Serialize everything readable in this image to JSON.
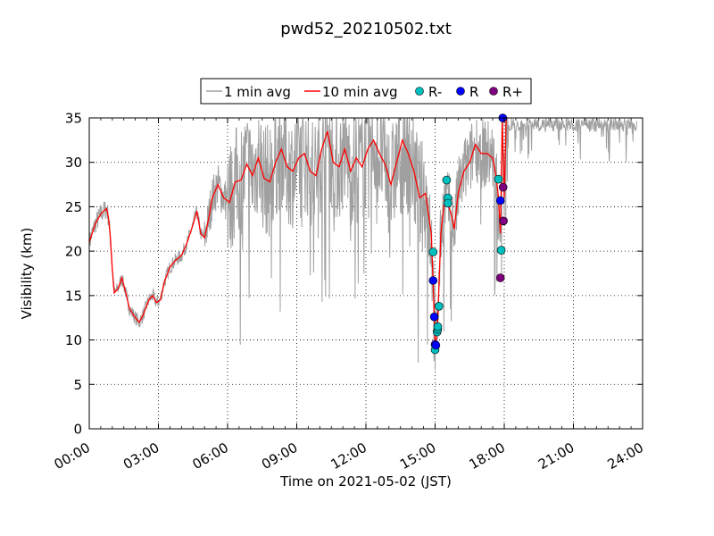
{
  "chart_data": {
    "type": "line",
    "title": "pwd52_20210502.txt",
    "xlabel": "Time on 2021-05-02 (JST)",
    "ylabel": "Visibility (km)",
    "xlim": [
      "00:00",
      "24:00"
    ],
    "ylim": [
      0,
      35
    ],
    "x_tick_labels": [
      "00:00",
      "03:00",
      "06:00",
      "09:00",
      "12:00",
      "15:00",
      "18:00",
      "21:00",
      "24:00"
    ],
    "y_ticks": [
      0,
      5,
      10,
      15,
      20,
      25,
      30,
      35
    ],
    "grid": true,
    "legend_position": "top-center",
    "legend": [
      "1 min avg",
      "10 min avg",
      "R-",
      "R",
      "R+"
    ],
    "colors": {
      "one_min": "#a0a0a0",
      "ten_min": "#ff0000",
      "r_minus": "#00bfbf",
      "r": "#0000ff",
      "r_plus": "#7f007f"
    },
    "series": [
      {
        "name": "10 min avg",
        "points": [
          [
            "00:00",
            21.0
          ],
          [
            "00:15",
            23.0
          ],
          [
            "00:30",
            24.2
          ],
          [
            "00:45",
            24.8
          ],
          [
            "00:50",
            23.8
          ],
          [
            "00:55",
            21.5
          ],
          [
            "01:00",
            18.0
          ],
          [
            "01:05",
            15.3
          ],
          [
            "01:15",
            15.8
          ],
          [
            "01:25",
            17.0
          ],
          [
            "01:35",
            15.3
          ],
          [
            "01:45",
            13.5
          ],
          [
            "02:00",
            12.5
          ],
          [
            "02:10",
            12.0
          ],
          [
            "02:20",
            12.8
          ],
          [
            "02:35",
            14.5
          ],
          [
            "02:45",
            15.0
          ],
          [
            "02:55",
            14.2
          ],
          [
            "03:05",
            14.5
          ],
          [
            "03:15",
            16.5
          ],
          [
            "03:30",
            18.2
          ],
          [
            "03:45",
            19.0
          ],
          [
            "04:00",
            19.5
          ],
          [
            "04:15",
            21.0
          ],
          [
            "04:30",
            23.0
          ],
          [
            "04:40",
            24.5
          ],
          [
            "04:50",
            22.0
          ],
          [
            "05:00",
            21.5
          ],
          [
            "05:10",
            23.5
          ],
          [
            "05:20",
            26.0
          ],
          [
            "05:35",
            27.5
          ],
          [
            "05:50",
            26.0
          ],
          [
            "06:05",
            25.5
          ],
          [
            "06:20",
            27.8
          ],
          [
            "06:35",
            28.0
          ],
          [
            "06:50",
            29.8
          ],
          [
            "07:05",
            28.5
          ],
          [
            "07:20",
            30.5
          ],
          [
            "07:35",
            28.2
          ],
          [
            "07:50",
            27.8
          ],
          [
            "08:05",
            30.0
          ],
          [
            "08:20",
            31.5
          ],
          [
            "08:35",
            29.5
          ],
          [
            "08:50",
            29.0
          ],
          [
            "09:05",
            30.5
          ],
          [
            "09:20",
            31.0
          ],
          [
            "09:35",
            29.0
          ],
          [
            "09:50",
            28.5
          ],
          [
            "10:05",
            31.5
          ],
          [
            "10:20",
            33.5
          ],
          [
            "10:35",
            30.0
          ],
          [
            "10:50",
            29.5
          ],
          [
            "11:05",
            31.5
          ],
          [
            "11:20",
            29.0
          ],
          [
            "11:35",
            30.5
          ],
          [
            "11:50",
            29.5
          ],
          [
            "12:05",
            31.5
          ],
          [
            "12:20",
            32.5
          ],
          [
            "12:35",
            31.0
          ],
          [
            "12:50",
            29.8
          ],
          [
            "13:05",
            27.5
          ],
          [
            "13:20",
            30.0
          ],
          [
            "13:35",
            32.5
          ],
          [
            "13:50",
            31.0
          ],
          [
            "14:05",
            29.0
          ],
          [
            "14:20",
            26.0
          ],
          [
            "14:35",
            26.5
          ],
          [
            "14:50",
            22.0
          ],
          [
            "14:55",
            16.5
          ],
          [
            "15:00",
            9.5
          ],
          [
            "15:05",
            10.5
          ],
          [
            "15:10",
            16.0
          ],
          [
            "15:15",
            22.0
          ],
          [
            "15:25",
            26.0
          ],
          [
            "15:40",
            24.5
          ],
          [
            "15:50",
            22.5
          ],
          [
            "16:00",
            26.5
          ],
          [
            "16:15",
            29.0
          ],
          [
            "16:30",
            30.0
          ],
          [
            "16:45",
            32.0
          ],
          [
            "17:00",
            31.0
          ],
          [
            "17:15",
            31.0
          ],
          [
            "17:30",
            30.5
          ],
          [
            "17:40",
            28.0
          ],
          [
            "17:45",
            26.0
          ],
          [
            "17:50",
            22.0
          ],
          [
            "17:55",
            35.0
          ],
          [
            "18:00",
            26.0
          ],
          [
            "18:05",
            35.0
          ],
          [
            "18:10",
            35.0
          ]
        ]
      },
      {
        "name": "R-",
        "points": [
          [
            "14:55",
            19.9
          ],
          [
            "15:00",
            8.9
          ],
          [
            "15:05",
            10.9
          ],
          [
            "15:07",
            11.2
          ],
          [
            "15:07",
            11.5
          ],
          [
            "15:10",
            13.8
          ],
          [
            "15:30",
            28.0
          ],
          [
            "15:33",
            26.0
          ],
          [
            "15:33",
            25.4
          ],
          [
            "17:45",
            28.1
          ],
          [
            "17:52",
            20.1
          ]
        ]
      },
      {
        "name": "R",
        "points": [
          [
            "14:55",
            16.7
          ],
          [
            "14:58",
            12.6
          ],
          [
            "15:00",
            9.5
          ],
          [
            "15:02",
            9.4
          ],
          [
            "17:50",
            25.7
          ],
          [
            "17:56",
            35.0
          ]
        ]
      },
      {
        "name": "R+",
        "points": [
          [
            "17:50",
            17.0
          ],
          [
            "17:57",
            27.2
          ],
          [
            "17:58",
            23.4
          ]
        ]
      }
    ]
  }
}
